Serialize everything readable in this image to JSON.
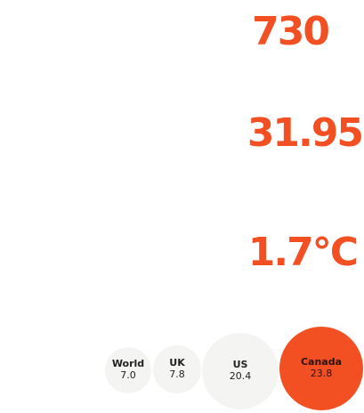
{
  "accent_color": "#f24f23",
  "stats": [
    {
      "value": "730"
    },
    {
      "value": "31.95"
    },
    {
      "value": "1.7°C"
    }
  ],
  "bubbles": [
    {
      "name": "World",
      "value": "7.0",
      "color": "#f4f4f2"
    },
    {
      "name": "UK",
      "value": "7.8",
      "color": "#f4f4f2"
    },
    {
      "name": "US",
      "value": "20.4",
      "color": "#f4f4f2"
    },
    {
      "name": "Canada",
      "value": "23.8",
      "color": "#f24f23"
    }
  ]
}
